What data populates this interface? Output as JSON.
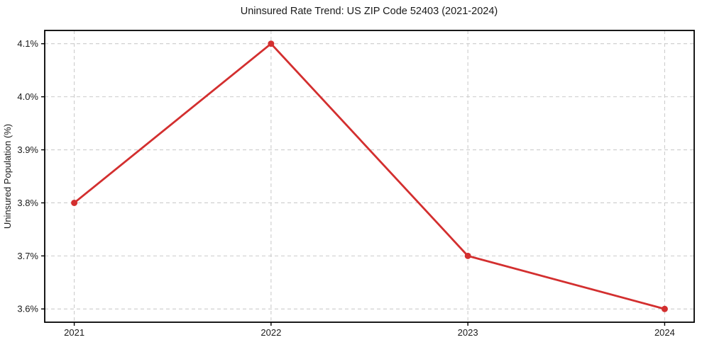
{
  "chart_data": {
    "type": "line",
    "title": "Uninsured Rate Trend: US ZIP Code 52403 (2021-2024)",
    "xlabel": "",
    "ylabel": "Uninsured Population (%)",
    "x": [
      2021,
      2022,
      2023,
      2024
    ],
    "values": [
      3.8,
      4.1,
      3.7,
      3.6
    ],
    "x_ticks": [
      {
        "value": 2021,
        "label": "2021"
      },
      {
        "value": 2022,
        "label": "2022"
      },
      {
        "value": 2023,
        "label": "2023"
      },
      {
        "value": 2024,
        "label": "2024"
      }
    ],
    "y_ticks": [
      {
        "value": 3.6,
        "label": "3.6%"
      },
      {
        "value": 3.7,
        "label": "3.7%"
      },
      {
        "value": 3.8,
        "label": "3.8%"
      },
      {
        "value": 3.9,
        "label": "3.9%"
      },
      {
        "value": 4.0,
        "label": "4.0%"
      },
      {
        "value": 4.1,
        "label": "4.1%"
      }
    ],
    "xlim": [
      2020.85,
      2024.15
    ],
    "ylim": [
      3.575,
      4.125
    ],
    "grid": true,
    "grid_style": "dashed",
    "legend": "none",
    "colors": {
      "line": "#d32f2f",
      "marker": "#d32f2f",
      "grid": "#cccccc",
      "spine": "#000000",
      "background": "#ffffff",
      "text": "#1a1a1a"
    }
  }
}
